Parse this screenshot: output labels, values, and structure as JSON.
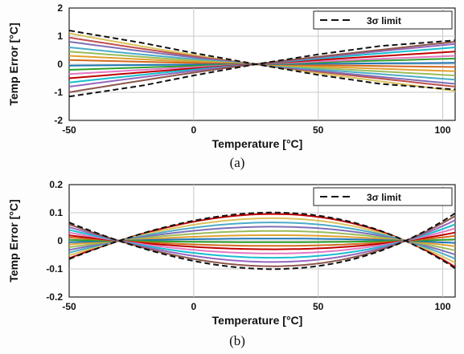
{
  "chart_data": [
    {
      "id": "a",
      "type": "line",
      "title": "",
      "caption": "(a)",
      "xlabel": "Temperature [°C]",
      "ylabel": "Temp Error [°C]",
      "xlim": [
        -50,
        105
      ],
      "ylim": [
        -2,
        2
      ],
      "xticks": [
        -50,
        0,
        50,
        100
      ],
      "xtick_labels": [
        "-50",
        "0",
        "50",
        "100"
      ],
      "yticks": [
        -2,
        -1,
        0,
        1,
        2
      ],
      "ytick_labels": [
        "-2",
        "-1",
        "0",
        "1",
        "2"
      ],
      "grid": true,
      "legend": {
        "position": "top-right",
        "entries": [
          "3σ limit"
        ]
      },
      "limit": {
        "name": "3σ limit",
        "style": "dashed",
        "pivot_x": 25,
        "upper": [
          [
            -50,
            1.2
          ],
          [
            -20,
            0.75
          ],
          [
            0,
            0.4
          ],
          [
            25,
            0.0
          ],
          [
            50,
            0.35
          ],
          [
            75,
            0.65
          ],
          [
            105,
            0.85
          ]
        ],
        "lower": [
          [
            -50,
            -1.15
          ],
          [
            -20,
            -0.75
          ],
          [
            0,
            -0.4
          ],
          [
            25,
            0.0
          ],
          [
            50,
            -0.38
          ],
          [
            75,
            -0.7
          ],
          [
            105,
            -0.9
          ]
        ]
      },
      "series": [
        {
          "color": "#d9c25c",
          "start": 1.1,
          "end": -0.95
        },
        {
          "color": "#c0504d",
          "start": 0.95,
          "end": -0.8
        },
        {
          "color": "#7f6fb5",
          "start": 0.8,
          "end": -0.7
        },
        {
          "color": "#4bacc6",
          "start": 0.6,
          "end": -0.55
        },
        {
          "color": "#9bbb59",
          "start": 0.45,
          "end": -0.4
        },
        {
          "color": "#e0a030",
          "start": 0.3,
          "end": -0.25
        },
        {
          "color": "#d2691e",
          "start": 0.15,
          "end": -0.1
        },
        {
          "color": "#1f77b4",
          "start": -0.05,
          "end": 0.05
        },
        {
          "color": "#2ca02c",
          "start": -0.2,
          "end": 0.2
        },
        {
          "color": "#e377c2",
          "start": -0.35,
          "end": 0.3
        },
        {
          "color": "#c00000",
          "start": -0.5,
          "end": 0.45
        },
        {
          "color": "#17becf",
          "start": -0.65,
          "end": 0.6
        },
        {
          "color": "#9467bd",
          "start": -0.8,
          "end": 0.72
        },
        {
          "color": "#8c564b",
          "start": -1.0,
          "end": 0.8
        }
      ]
    },
    {
      "id": "b",
      "type": "line",
      "title": "",
      "caption": "(b)",
      "xlabel": "Temperature [°C]",
      "ylabel": "Temp Error [°C]",
      "xlim": [
        -50,
        105
      ],
      "ylim": [
        -0.2,
        0.2
      ],
      "xticks": [
        -50,
        0,
        50,
        100
      ],
      "xtick_labels": [
        "-50",
        "0",
        "50",
        "100"
      ],
      "yticks": [
        -0.2,
        -0.1,
        0,
        0.1,
        0.2
      ],
      "ytick_labels": [
        "-0.2",
        "-0.1",
        "0",
        "0.1",
        "0.2"
      ],
      "grid": true,
      "legend": {
        "position": "top-right",
        "entries": [
          "3σ limit"
        ]
      },
      "limit": {
        "name": "3σ limit",
        "style": "dashed",
        "zeros": [
          -30,
          85
        ],
        "upper_k": 1.0,
        "lower_k": -1.0
      },
      "series": [
        {
          "color": "#c00000",
          "k": 0.95
        },
        {
          "color": "#d9c25c",
          "k": 0.8
        },
        {
          "color": "#4bacc6",
          "k": 0.65
        },
        {
          "color": "#7f6fb5",
          "k": 0.5
        },
        {
          "color": "#9bbb59",
          "k": 0.35
        },
        {
          "color": "#e0a030",
          "k": 0.2
        },
        {
          "color": "#1f77b4",
          "k": 0.08
        },
        {
          "color": "#2ca02c",
          "k": -0.05
        },
        {
          "color": "#d2691e",
          "k": -0.18
        },
        {
          "color": "#c00000",
          "k": -0.3
        },
        {
          "color": "#e377c2",
          "k": -0.45
        },
        {
          "color": "#17becf",
          "k": -0.6
        },
        {
          "color": "#9467bd",
          "k": -0.75
        },
        {
          "color": "#8c564b",
          "k": -0.9
        }
      ],
      "peak_value": 0.1
    }
  ]
}
